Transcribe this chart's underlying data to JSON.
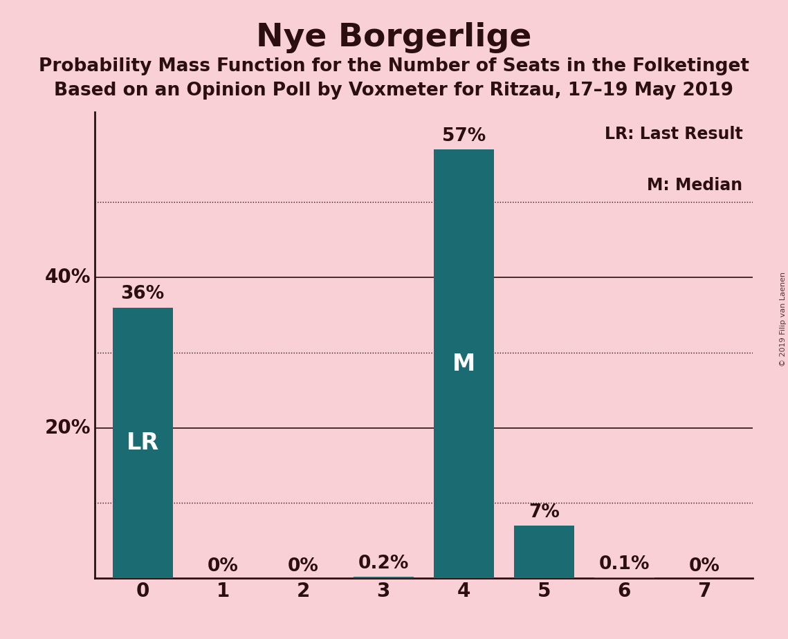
{
  "title": "Nye Borgerlige",
  "subtitle1": "Probability Mass Function for the Number of Seats in the Folketinget",
  "subtitle2": "Based on an Opinion Poll by Voxmeter for Ritzau, 17–19 May 2019",
  "copyright": "© 2019 Filip van Laenen",
  "categories": [
    0,
    1,
    2,
    3,
    4,
    5,
    6,
    7
  ],
  "values": [
    0.36,
    0.0,
    0.0,
    0.002,
    0.57,
    0.07,
    0.001,
    0.0
  ],
  "labels": [
    "36%",
    "0%",
    "0%",
    "0.2%",
    "57%",
    "7%",
    "0.1%",
    "0%"
  ],
  "bar_color": "#1a6b72",
  "background_color": "#f9d0d5",
  "text_color": "#2b0f0f",
  "bar_labels_inside": {
    "0": "LR",
    "4": "M"
  },
  "legend_text": [
    "LR: Last Result",
    "M: Median"
  ],
  "ylim": [
    0,
    0.62
  ],
  "solid_gridlines": [
    0.2,
    0.4
  ],
  "dotted_gridlines": [
    0.1,
    0.3,
    0.5
  ],
  "ytick_labels_positions": [
    0.2,
    0.4
  ],
  "ytick_labels_text": [
    "20%",
    "40%"
  ],
  "title_fontsize": 34,
  "subtitle_fontsize": 19,
  "label_fontsize": 19,
  "bar_inner_fontsize": 24,
  "axis_fontsize": 20,
  "legend_fontsize": 17
}
